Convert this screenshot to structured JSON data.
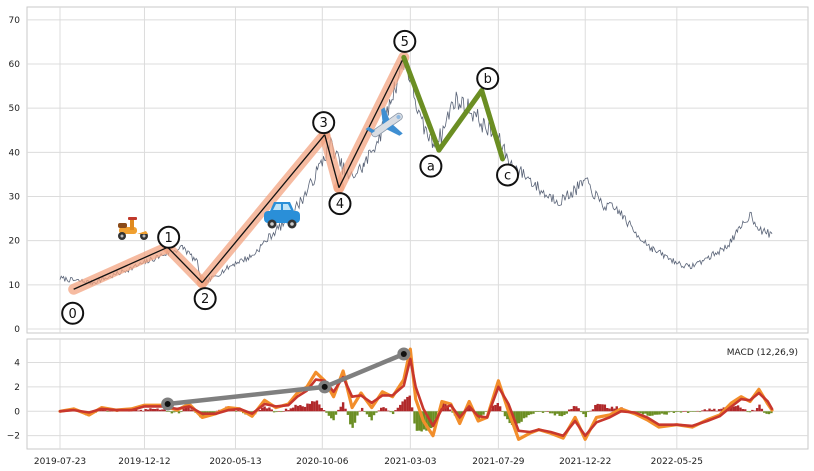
{
  "chart_data": [
    {
      "type": "line",
      "title": "",
      "xlabel": "",
      "ylabel": "",
      "grid": true,
      "ylim": [
        0,
        72
      ],
      "yticks": [
        "0",
        "10",
        "20",
        "30",
        "40",
        "50",
        "60",
        "70"
      ],
      "price_series": {
        "color": "#5a6478",
        "x": [
          "2019-07-23",
          "2019-08-15",
          "2019-09-15",
          "2019-10-15",
          "2019-11-15",
          "2019-12-12",
          "2020-01-15",
          "2020-02-15",
          "2020-03-10",
          "2020-03-18",
          "2020-04-15",
          "2020-05-13",
          "2020-06-10",
          "2020-07-10",
          "2020-08-10",
          "2020-09-10",
          "2020-10-06",
          "2020-10-20",
          "2020-11-03",
          "2020-11-20",
          "2020-12-15",
          "2021-01-15",
          "2021-02-05",
          "2021-02-20",
          "2021-03-03",
          "2021-03-20",
          "2021-04-10",
          "2021-04-25",
          "2021-05-15",
          "2021-06-10",
          "2021-07-05",
          "2021-07-29",
          "2021-08-20",
          "2021-09-15",
          "2021-10-15",
          "2021-11-10",
          "2021-12-01",
          "2021-12-22",
          "2022-01-20",
          "2022-02-15",
          "2022-03-15",
          "2022-04-15",
          "2022-05-25",
          "2022-06-15",
          "2022-07-15",
          "2022-08-15",
          "2022-09-05",
          "2022-09-25",
          "2022-10-15",
          "2022-11-01"
        ],
        "y": [
          11.5,
          11.0,
          10.5,
          11.8,
          13.5,
          15.0,
          17.0,
          18.5,
          15.0,
          10.0,
          12.5,
          15.0,
          16.5,
          21.0,
          25.0,
          31.0,
          38.0,
          42.0,
          38.0,
          34.0,
          37.0,
          45.0,
          55.0,
          61.0,
          57.0,
          47.0,
          42.0,
          44.0,
          52.0,
          50.0,
          46.0,
          43.0,
          37.0,
          34.5,
          30.5,
          29.0,
          31.0,
          33.5,
          28.0,
          27.0,
          22.0,
          18.0,
          15.0,
          14.0,
          16.0,
          18.5,
          22.0,
          26.0,
          22.0,
          21.5
        ]
      },
      "wave_labels": [
        "0",
        "1",
        "2",
        "3",
        "4",
        "5",
        "a",
        "b",
        "c"
      ],
      "impulse_waves": {
        "color": "#f4a582",
        "points": [
          {
            "label": "0",
            "x": "2019-08-15",
            "y": 9.0
          },
          {
            "label": "1",
            "x": "2020-01-20",
            "y": 18.5
          },
          {
            "label": "2",
            "x": "2020-03-18",
            "y": 10.5
          },
          {
            "label": "3",
            "x": "2020-10-10",
            "y": 44.0
          },
          {
            "label": "4",
            "x": "2020-11-03",
            "y": 32.0
          },
          {
            "label": "5",
            "x": "2021-02-20",
            "y": 61.5
          }
        ]
      },
      "corrective_waves": {
        "color": "#6b8e23",
        "points": [
          {
            "label": "5",
            "x": "2021-02-20",
            "y": 61.5
          },
          {
            "label": "a",
            "x": "2021-04-20",
            "y": 40.5
          },
          {
            "label": "b",
            "x": "2021-07-01",
            "y": 54.0
          },
          {
            "label": "c",
            "x": "2021-08-05",
            "y": 38.5
          }
        ]
      },
      "icons": [
        "scooter-icon",
        "car-icon",
        "airplane-icon"
      ],
      "x_ticks": [
        "2019-07-23",
        "2019-12-12",
        "2020-05-13",
        "2020-10-06",
        "2021-03-03",
        "2021-07-29",
        "2021-12-22",
        "2022-05-25"
      ]
    },
    {
      "type": "line",
      "legend": {
        "text": "MACD (12,26,9)",
        "position": "top-right"
      },
      "ylim": [
        -2.6,
        5.6
      ],
      "yticks": [
        "−2",
        "0",
        "2",
        "4"
      ],
      "grid": true,
      "macd_line": {
        "color": "#f28e2b",
        "x": [
          "2019-07-23",
          "2019-08-15",
          "2019-09-10",
          "2019-10-01",
          "2019-10-25",
          "2019-11-20",
          "2019-12-12",
          "2020-01-10",
          "2020-02-05",
          "2020-02-25",
          "2020-03-18",
          "2020-04-10",
          "2020-05-01",
          "2020-05-20",
          "2020-06-10",
          "2020-07-01",
          "2020-07-20",
          "2020-08-10",
          "2020-08-25",
          "2020-09-10",
          "2020-09-25",
          "2020-10-10",
          "2020-10-25",
          "2020-11-10",
          "2020-11-25",
          "2020-12-10",
          "2020-12-28",
          "2021-01-15",
          "2021-02-01",
          "2021-02-20",
          "2021-03-03",
          "2021-03-12",
          "2021-03-25",
          "2021-04-10",
          "2021-04-25",
          "2021-05-10",
          "2021-05-25",
          "2021-06-10",
          "2021-06-25",
          "2021-07-10",
          "2021-07-29",
          "2021-08-15",
          "2021-09-01",
          "2021-09-20",
          "2021-10-05",
          "2021-10-25",
          "2021-11-15",
          "2021-12-05",
          "2021-12-22",
          "2022-01-10",
          "2022-02-01",
          "2022-02-20",
          "2022-03-15",
          "2022-04-05",
          "2022-04-25",
          "2022-05-25",
          "2022-06-20",
          "2022-07-15",
          "2022-08-05",
          "2022-08-25",
          "2022-09-10",
          "2022-09-25",
          "2022-10-10",
          "2022-10-25",
          "2022-11-01"
        ],
        "y": [
          0.0,
          0.2,
          -0.3,
          0.3,
          0.1,
          0.2,
          0.5,
          0.5,
          0.1,
          0.6,
          -0.5,
          -0.2,
          0.3,
          0.2,
          -0.4,
          0.9,
          0.3,
          0.6,
          1.5,
          2.0,
          3.2,
          2.5,
          1.2,
          3.3,
          0.3,
          1.5,
          0.3,
          1.6,
          1.2,
          2.6,
          5.1,
          1.0,
          -0.8,
          -2.0,
          0.8,
          0.6,
          -1.0,
          0.8,
          -0.8,
          -0.5,
          2.5,
          0.0,
          -2.3,
          -1.8,
          -1.5,
          -1.8,
          -2.2,
          -0.5,
          -2.3,
          -0.5,
          -0.3,
          0.2,
          -0.2,
          -0.7,
          -1.3,
          -1.1,
          -1.3,
          -0.7,
          -0.3,
          0.7,
          1.2,
          0.8,
          1.8,
          0.6,
          0.1
        ]
      },
      "signal_line": {
        "color": "#c8372d",
        "x": [
          "2019-07-23",
          "2019-08-15",
          "2019-09-10",
          "2019-10-01",
          "2019-10-25",
          "2019-11-20",
          "2019-12-12",
          "2020-01-10",
          "2020-02-05",
          "2020-02-25",
          "2020-03-18",
          "2020-04-10",
          "2020-05-01",
          "2020-05-20",
          "2020-06-10",
          "2020-07-01",
          "2020-07-20",
          "2020-08-10",
          "2020-08-25",
          "2020-09-10",
          "2020-09-25",
          "2020-10-10",
          "2020-10-25",
          "2020-11-10",
          "2020-11-25",
          "2020-12-10",
          "2020-12-28",
          "2021-01-15",
          "2021-02-01",
          "2021-02-20",
          "2021-03-03",
          "2021-03-12",
          "2021-03-25",
          "2021-04-10",
          "2021-04-25",
          "2021-05-10",
          "2021-05-25",
          "2021-06-10",
          "2021-06-25",
          "2021-07-10",
          "2021-07-29",
          "2021-08-15",
          "2021-09-01",
          "2021-09-20",
          "2021-10-05",
          "2021-10-25",
          "2021-11-15",
          "2021-12-05",
          "2021-12-22",
          "2022-01-10",
          "2022-02-01",
          "2022-02-20",
          "2022-03-15",
          "2022-04-05",
          "2022-04-25",
          "2022-05-25",
          "2022-06-20",
          "2022-07-15",
          "2022-08-05",
          "2022-08-25",
          "2022-09-10",
          "2022-09-25",
          "2022-10-10",
          "2022-10-25",
          "2022-11-01"
        ],
        "y": [
          0.0,
          0.1,
          -0.1,
          0.2,
          0.1,
          0.1,
          0.4,
          0.4,
          0.2,
          0.4,
          -0.2,
          -0.2,
          0.1,
          0.2,
          -0.2,
          0.6,
          0.4,
          0.5,
          1.2,
          1.7,
          2.6,
          2.5,
          1.6,
          2.8,
          1.2,
          1.3,
          0.7,
          1.3,
          1.3,
          2.1,
          4.3,
          2.0,
          0.2,
          -1.2,
          0.2,
          0.5,
          -0.5,
          0.4,
          -0.4,
          -0.5,
          2.0,
          0.6,
          -1.6,
          -1.7,
          -1.5,
          -1.7,
          -2.0,
          -0.8,
          -2.0,
          -0.9,
          -0.5,
          0.0,
          -0.1,
          -0.5,
          -1.1,
          -1.1,
          -1.2,
          -0.8,
          -0.4,
          0.4,
          1.0,
          0.9,
          1.5,
          0.8,
          0.2
        ]
      },
      "histogram": {
        "positive_color": "#b0282a",
        "negative_color": "#6b8e23"
      },
      "wave_marker_line": {
        "color": "#7f7f7f",
        "points": [
          {
            "x": "2020-01-20",
            "y": 0.6
          },
          {
            "x": "2020-10-10",
            "y": 2.0
          },
          {
            "x": "2021-02-20",
            "y": 4.7
          }
        ]
      },
      "x_ticks": [
        "2019-07-23",
        "2019-12-12",
        "2020-05-13",
        "2020-10-06",
        "2021-03-03",
        "2021-07-29",
        "2021-12-22",
        "2022-05-25"
      ]
    }
  ]
}
